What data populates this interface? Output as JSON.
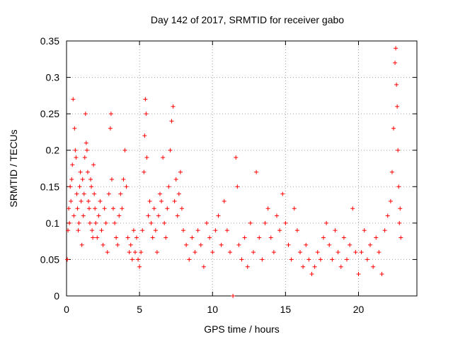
{
  "chart_data": {
    "type": "scatter",
    "title": "Day 142 of 2017, SRMTID for receiver gabo",
    "xlabel": "GPS time / hours",
    "ylabel": "SRMTID / TECUs",
    "xlim": [
      0,
      24
    ],
    "ylim": [
      0,
      0.35
    ],
    "x_ticks": [
      0,
      5,
      10,
      15,
      20
    ],
    "y_ticks": [
      0,
      0.05,
      0.1,
      0.15,
      0.2,
      0.25,
      0.3,
      0.35
    ],
    "x_tick_labels": [
      "0",
      "5",
      "10",
      "15",
      "20"
    ],
    "y_tick_labels": [
      "0",
      "0.05",
      "0.1",
      "0.15",
      "0.2",
      "0.25",
      "0.3",
      "0.35"
    ],
    "grid": true,
    "marker": "+",
    "color": "#ff0000",
    "series": [
      {
        "name": "SRMTID",
        "points": [
          [
            0.05,
            0.05
          ],
          [
            0.1,
            0.09
          ],
          [
            0.15,
            0.12
          ],
          [
            0.2,
            0.1
          ],
          [
            0.25,
            0.15
          ],
          [
            0.3,
            0.13
          ],
          [
            0.35,
            0.16
          ],
          [
            0.4,
            0.18
          ],
          [
            0.45,
            0.27
          ],
          [
            0.5,
            0.11
          ],
          [
            0.55,
            0.23
          ],
          [
            0.6,
            0.2
          ],
          [
            0.65,
            0.19
          ],
          [
            0.7,
            0.14
          ],
          [
            0.75,
            0.12
          ],
          [
            0.8,
            0.09
          ],
          [
            0.85,
            0.1
          ],
          [
            0.9,
            0.15
          ],
          [
            0.95,
            0.17
          ],
          [
            1.0,
            0.13
          ],
          [
            1.05,
            0.07
          ],
          [
            1.1,
            0.16
          ],
          [
            1.15,
            0.11
          ],
          [
            1.2,
            0.14
          ],
          [
            1.25,
            0.19
          ],
          [
            1.3,
            0.25
          ],
          [
            1.35,
            0.21
          ],
          [
            1.4,
            0.2
          ],
          [
            1.45,
            0.17
          ],
          [
            1.5,
            0.13
          ],
          [
            1.55,
            0.12
          ],
          [
            1.6,
            0.1
          ],
          [
            1.65,
            0.16
          ],
          [
            1.7,
            0.15
          ],
          [
            1.75,
            0.09
          ],
          [
            1.8,
            0.08
          ],
          [
            1.85,
            0.18
          ],
          [
            1.9,
            0.14
          ],
          [
            1.95,
            0.12
          ],
          [
            2.0,
            0.1
          ],
          [
            2.1,
            0.08
          ],
          [
            2.2,
            0.11
          ],
          [
            2.3,
            0.13
          ],
          [
            2.4,
            0.09
          ],
          [
            2.5,
            0.07
          ],
          [
            2.6,
            0.12
          ],
          [
            2.7,
            0.1
          ],
          [
            2.8,
            0.06
          ],
          [
            2.9,
            0.14
          ],
          [
            3.0,
            0.23
          ],
          [
            3.05,
            0.25
          ],
          [
            3.1,
            0.16
          ],
          [
            3.2,
            0.12
          ],
          [
            3.3,
            0.1
          ],
          [
            3.4,
            0.08
          ],
          [
            3.5,
            0.07
          ],
          [
            3.6,
            0.11
          ],
          [
            3.7,
            0.14
          ],
          [
            3.8,
            0.12
          ],
          [
            3.9,
            0.16
          ],
          [
            4.0,
            0.2
          ],
          [
            4.1,
            0.15
          ],
          [
            4.2,
            0.08
          ],
          [
            4.3,
            0.06
          ],
          [
            4.4,
            0.07
          ],
          [
            4.5,
            0.05
          ],
          [
            4.6,
            0.09
          ],
          [
            4.7,
            0.06
          ],
          [
            4.8,
            0.08
          ],
          [
            4.9,
            0.05
          ],
          [
            5.0,
            0.04
          ],
          [
            5.1,
            0.06
          ],
          [
            5.2,
            0.09
          ],
          [
            5.3,
            0.17
          ],
          [
            5.35,
            0.22
          ],
          [
            5.4,
            0.27
          ],
          [
            5.45,
            0.25
          ],
          [
            5.5,
            0.19
          ],
          [
            5.6,
            0.11
          ],
          [
            5.7,
            0.13
          ],
          [
            5.8,
            0.1
          ],
          [
            5.9,
            0.08
          ],
          [
            6.0,
            0.12
          ],
          [
            6.1,
            0.09
          ],
          [
            6.2,
            0.06
          ],
          [
            6.3,
            0.11
          ],
          [
            6.4,
            0.14
          ],
          [
            6.5,
            0.13
          ],
          [
            6.6,
            0.19
          ],
          [
            6.7,
            0.1
          ],
          [
            6.8,
            0.08
          ],
          [
            6.9,
            0.12
          ],
          [
            7.0,
            0.15
          ],
          [
            7.1,
            0.2
          ],
          [
            7.2,
            0.24
          ],
          [
            7.3,
            0.26
          ],
          [
            7.4,
            0.13
          ],
          [
            7.5,
            0.16
          ],
          [
            7.6,
            0.11
          ],
          [
            7.7,
            0.14
          ],
          [
            7.8,
            0.17
          ],
          [
            7.9,
            0.12
          ],
          [
            8.0,
            0.09
          ],
          [
            8.2,
            0.07
          ],
          [
            8.4,
            0.05
          ],
          [
            8.6,
            0.08
          ],
          [
            8.8,
            0.06
          ],
          [
            9.0,
            0.09
          ],
          [
            9.2,
            0.07
          ],
          [
            9.4,
            0.04
          ],
          [
            9.6,
            0.1
          ],
          [
            9.8,
            0.08
          ],
          [
            10.0,
            0.06
          ],
          [
            10.2,
            0.09
          ],
          [
            10.4,
            0.11
          ],
          [
            10.6,
            0.07
          ],
          [
            10.8,
            0.13
          ],
          [
            11.0,
            0.09
          ],
          [
            11.2,
            0.06
          ],
          [
            11.4,
            0.0
          ],
          [
            11.6,
            0.19
          ],
          [
            11.7,
            0.15
          ],
          [
            11.8,
            0.07
          ],
          [
            12.0,
            0.05
          ],
          [
            12.2,
            0.08
          ],
          [
            12.4,
            0.04
          ],
          [
            12.6,
            0.1
          ],
          [
            12.8,
            0.06
          ],
          [
            13.0,
            0.17
          ],
          [
            13.2,
            0.08
          ],
          [
            13.4,
            0.05
          ],
          [
            13.6,
            0.1
          ],
          [
            13.8,
            0.12
          ],
          [
            14.0,
            0.08
          ],
          [
            14.2,
            0.06
          ],
          [
            14.4,
            0.11
          ],
          [
            14.6,
            0.09
          ],
          [
            14.8,
            0.14
          ],
          [
            15.0,
            0.1
          ],
          [
            15.2,
            0.07
          ],
          [
            15.4,
            0.05
          ],
          [
            15.6,
            0.12
          ],
          [
            15.8,
            0.09
          ],
          [
            16.0,
            0.06
          ],
          [
            16.2,
            0.04
          ],
          [
            16.4,
            0.07
          ],
          [
            16.6,
            0.05
          ],
          [
            16.8,
            0.03
          ],
          [
            17.0,
            0.04
          ],
          [
            17.2,
            0.06
          ],
          [
            17.4,
            0.05
          ],
          [
            17.6,
            0.08
          ],
          [
            17.8,
            0.1
          ],
          [
            18.0,
            0.07
          ],
          [
            18.2,
            0.05
          ],
          [
            18.4,
            0.09
          ],
          [
            18.6,
            0.06
          ],
          [
            18.8,
            0.04
          ],
          [
            19.0,
            0.08
          ],
          [
            19.2,
            0.05
          ],
          [
            19.4,
            0.07
          ],
          [
            19.6,
            0.12
          ],
          [
            19.8,
            0.06
          ],
          [
            20.0,
            0.03
          ],
          [
            20.2,
            0.06
          ],
          [
            20.4,
            0.09
          ],
          [
            20.6,
            0.05
          ],
          [
            20.8,
            0.07
          ],
          [
            21.0,
            0.04
          ],
          [
            21.2,
            0.08
          ],
          [
            21.4,
            0.06
          ],
          [
            21.6,
            0.03
          ],
          [
            21.8,
            0.09
          ],
          [
            22.0,
            0.11
          ],
          [
            22.2,
            0.13
          ],
          [
            22.3,
            0.17
          ],
          [
            22.4,
            0.23
          ],
          [
            22.5,
            0.32
          ],
          [
            22.55,
            0.34
          ],
          [
            22.6,
            0.29
          ],
          [
            22.65,
            0.26
          ],
          [
            22.7,
            0.2
          ],
          [
            22.75,
            0.15
          ],
          [
            22.8,
            0.1
          ],
          [
            22.85,
            0.12
          ],
          [
            22.9,
            0.08
          ]
        ]
      }
    ]
  }
}
